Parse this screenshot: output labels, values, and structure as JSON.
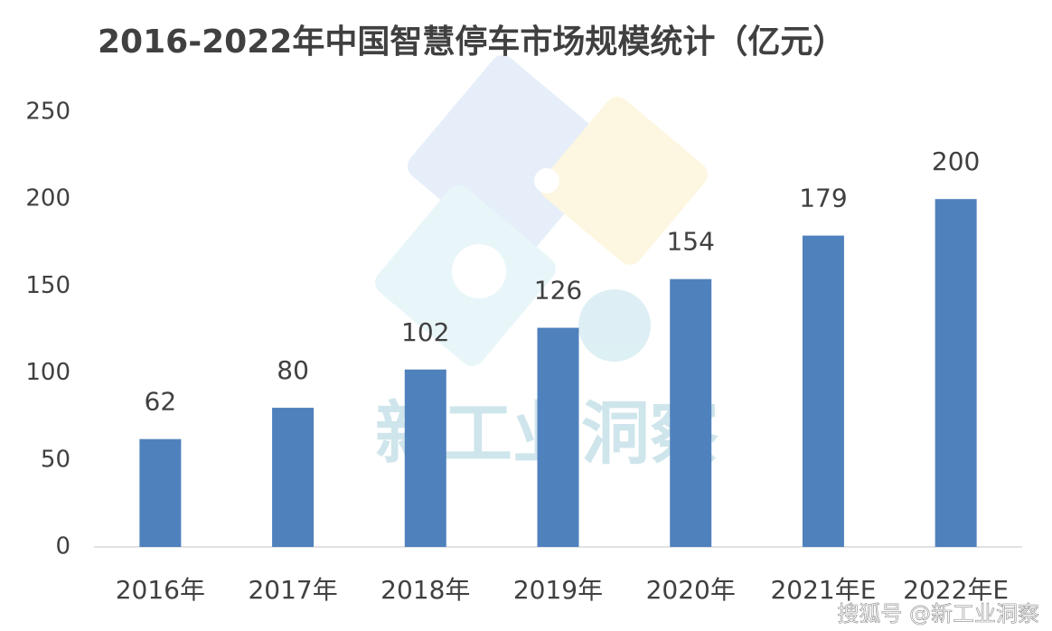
{
  "chart_data": {
    "type": "bar",
    "title": "2016-2022年中国智慧停车市场规模统计（亿元）",
    "categories": [
      "2016年",
      "2017年",
      "2018年",
      "2019年",
      "2020年",
      "2021年E",
      "2022年E"
    ],
    "values": [
      62,
      80,
      102,
      126,
      154,
      179,
      200
    ],
    "color": "#4f81bd",
    "ylim": [
      0,
      250
    ],
    "yticks": [
      0,
      50,
      100,
      150,
      200,
      250
    ],
    "grid": false,
    "watermark": "新工业洞察",
    "source": "搜狐号 @新工业洞察"
  }
}
